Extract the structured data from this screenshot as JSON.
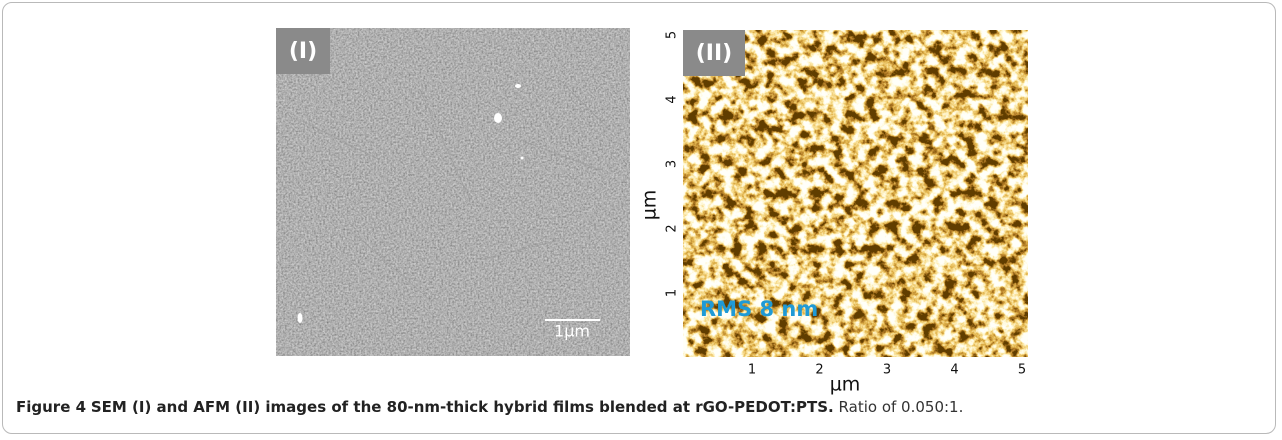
{
  "figure": {
    "panels": [
      {
        "label": "(I)",
        "scale_bar": "1µm"
      },
      {
        "label": "(II)",
        "annotation": "RMS 8 nm",
        "x_axis": {
          "label": "µm",
          "ticks": [
            "1",
            "2",
            "3",
            "4",
            "5"
          ]
        },
        "y_axis": {
          "label": "µm",
          "ticks": [
            "1",
            "2",
            "3",
            "4",
            "5"
          ]
        }
      }
    ],
    "caption": {
      "label": "Figure 4",
      "title": "SEM (I) and AFM (II) images of the 80-nm-thick hybrid films blended at rGO-PEDOT:PTS.",
      "text": "Ratio of 0.050:1."
    }
  }
}
